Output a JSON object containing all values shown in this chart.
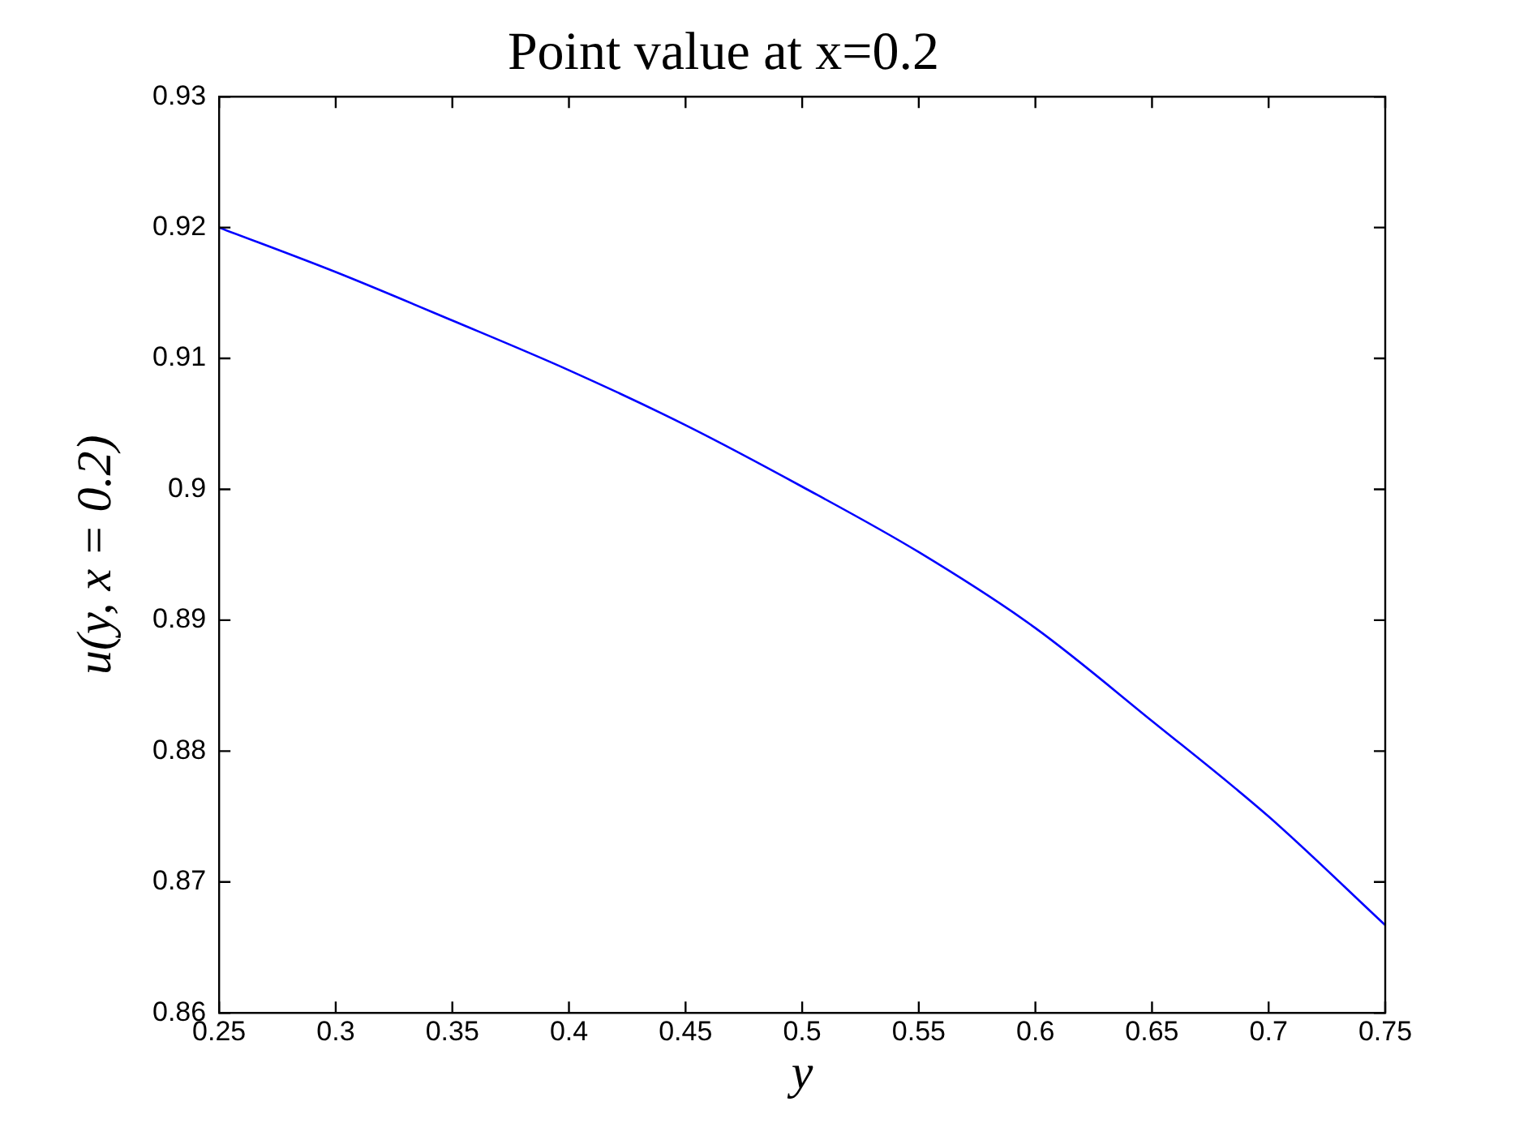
{
  "chart_data": {
    "type": "line",
    "title": "Point value at x=0.2",
    "xlabel": "y",
    "ylabel": "u(y, x = 0.2)",
    "x": [
      0.25,
      0.3,
      0.35,
      0.4,
      0.45,
      0.5,
      0.55,
      0.6,
      0.65,
      0.7,
      0.75
    ],
    "series": [
      {
        "color": "#0000ff",
        "values": [
          0.92,
          0.9166,
          0.9129,
          0.9091,
          0.9049,
          0.9002,
          0.8952,
          0.8894,
          0.8823,
          0.875,
          0.8667
        ]
      }
    ],
    "xlim": [
      0.25,
      0.75
    ],
    "xticks": [
      0.25,
      0.3,
      0.35,
      0.4,
      0.45,
      0.5,
      0.55,
      0.6,
      0.65,
      0.7,
      0.75
    ],
    "ylim": [
      0.86,
      0.93
    ],
    "yticks": [
      0.86,
      0.87,
      0.88,
      0.89,
      {
        "value": 0.9,
        "label": "0.9"
      },
      0.91,
      0.92,
      0.93
    ],
    "grid": false,
    "legend": false,
    "marker": "none",
    "line_style": "solid"
  }
}
